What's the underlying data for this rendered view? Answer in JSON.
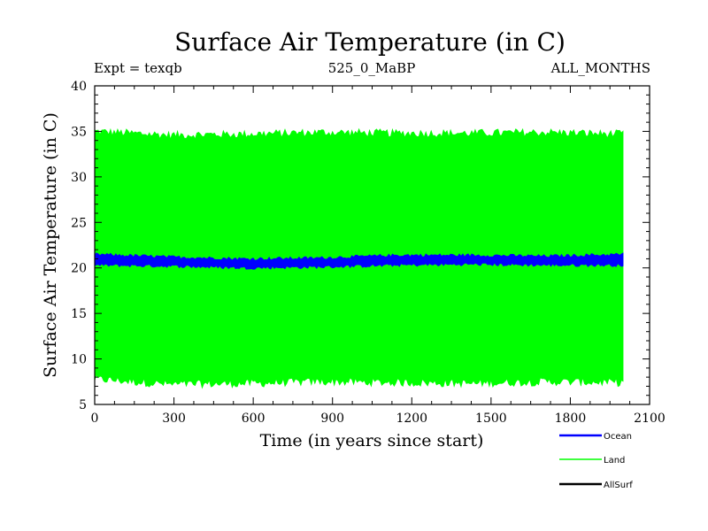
{
  "chart_data": {
    "type": "line",
    "title": "Surface Air Temperature (in C)",
    "header_left": "Expt = texqb",
    "header_center": "525_0_MaBP",
    "header_right": "ALL_MONTHS",
    "xlabel": "Time (in years since start)",
    "ylabel": "Surface Air Temperature (in C)",
    "xlim": [
      0,
      2100
    ],
    "ylim": [
      5,
      40
    ],
    "xticks": [
      0,
      300,
      600,
      900,
      1200,
      1500,
      1800,
      2100
    ],
    "yticks": [
      5,
      10,
      15,
      20,
      25,
      30,
      35,
      40
    ],
    "grid": false,
    "legend_position": "bottom-right",
    "series": [
      {
        "name": "Ocean",
        "color": "#0000ff",
        "x_range": [
          0,
          2000
        ],
        "min": [
          20.3,
          20.2,
          20.0,
          20.1,
          20.3,
          20.4,
          20.3,
          20.3
        ],
        "max": [
          21.5,
          21.2,
          21.0,
          21.1,
          21.4,
          21.4,
          21.3,
          21.5
        ]
      },
      {
        "name": "Land",
        "color": "#00ff00",
        "x_range": [
          0,
          2000
        ],
        "min": [
          7.8,
          7.2,
          7.3,
          7.5,
          7.4,
          7.3,
          7.5,
          7.4
        ],
        "max": [
          35.0,
          34.6,
          34.7,
          34.9,
          34.8,
          34.8,
          34.9,
          34.7
        ]
      },
      {
        "name": "AllSurf",
        "color": "#000000",
        "x_range": [
          0,
          2000
        ],
        "min": [
          20.5,
          20.4,
          20.3,
          20.4,
          20.5,
          20.5,
          20.5,
          20.5
        ],
        "max": [
          21.0,
          20.9,
          20.8,
          20.9,
          21.0,
          21.0,
          21.0,
          21.0
        ]
      }
    ]
  }
}
